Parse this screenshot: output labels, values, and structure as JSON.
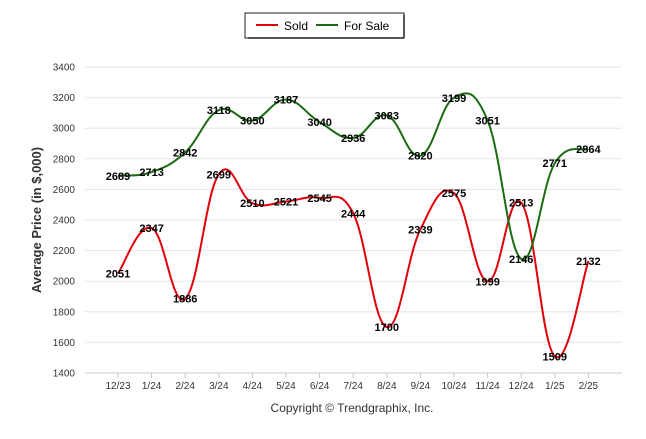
{
  "chart_data": {
    "type": "line",
    "categories": [
      "12/23",
      "1/24",
      "2/24",
      "3/24",
      "4/24",
      "5/24",
      "6/24",
      "7/24",
      "8/24",
      "9/24",
      "10/24",
      "11/24",
      "12/24",
      "1/25",
      "2/25"
    ],
    "series": [
      {
        "name": "Sold",
        "color": "#e0000c",
        "values": [
          2051,
          2347,
          1886,
          2699,
          2510,
          2521,
          2545,
          2444,
          1700,
          2339,
          2575,
          1999,
          2513,
          1509,
          2132
        ]
      },
      {
        "name": "For Sale",
        "color": "#1a6b12",
        "values": [
          2689,
          2713,
          2842,
          3118,
          3050,
          3187,
          3040,
          2936,
          3083,
          2820,
          3199,
          3051,
          2146,
          2771,
          2864
        ]
      }
    ],
    "ylabel": "Average Price (in $,000)",
    "xlabel": "",
    "ylim": [
      1400,
      3400
    ],
    "yticks": [
      1400,
      1600,
      1800,
      2000,
      2200,
      2400,
      2600,
      2800,
      3000,
      3200,
      3400
    ],
    "grid": true,
    "legend_placement": "top-center",
    "footer": "Copyright © Trendgraphix, Inc."
  }
}
